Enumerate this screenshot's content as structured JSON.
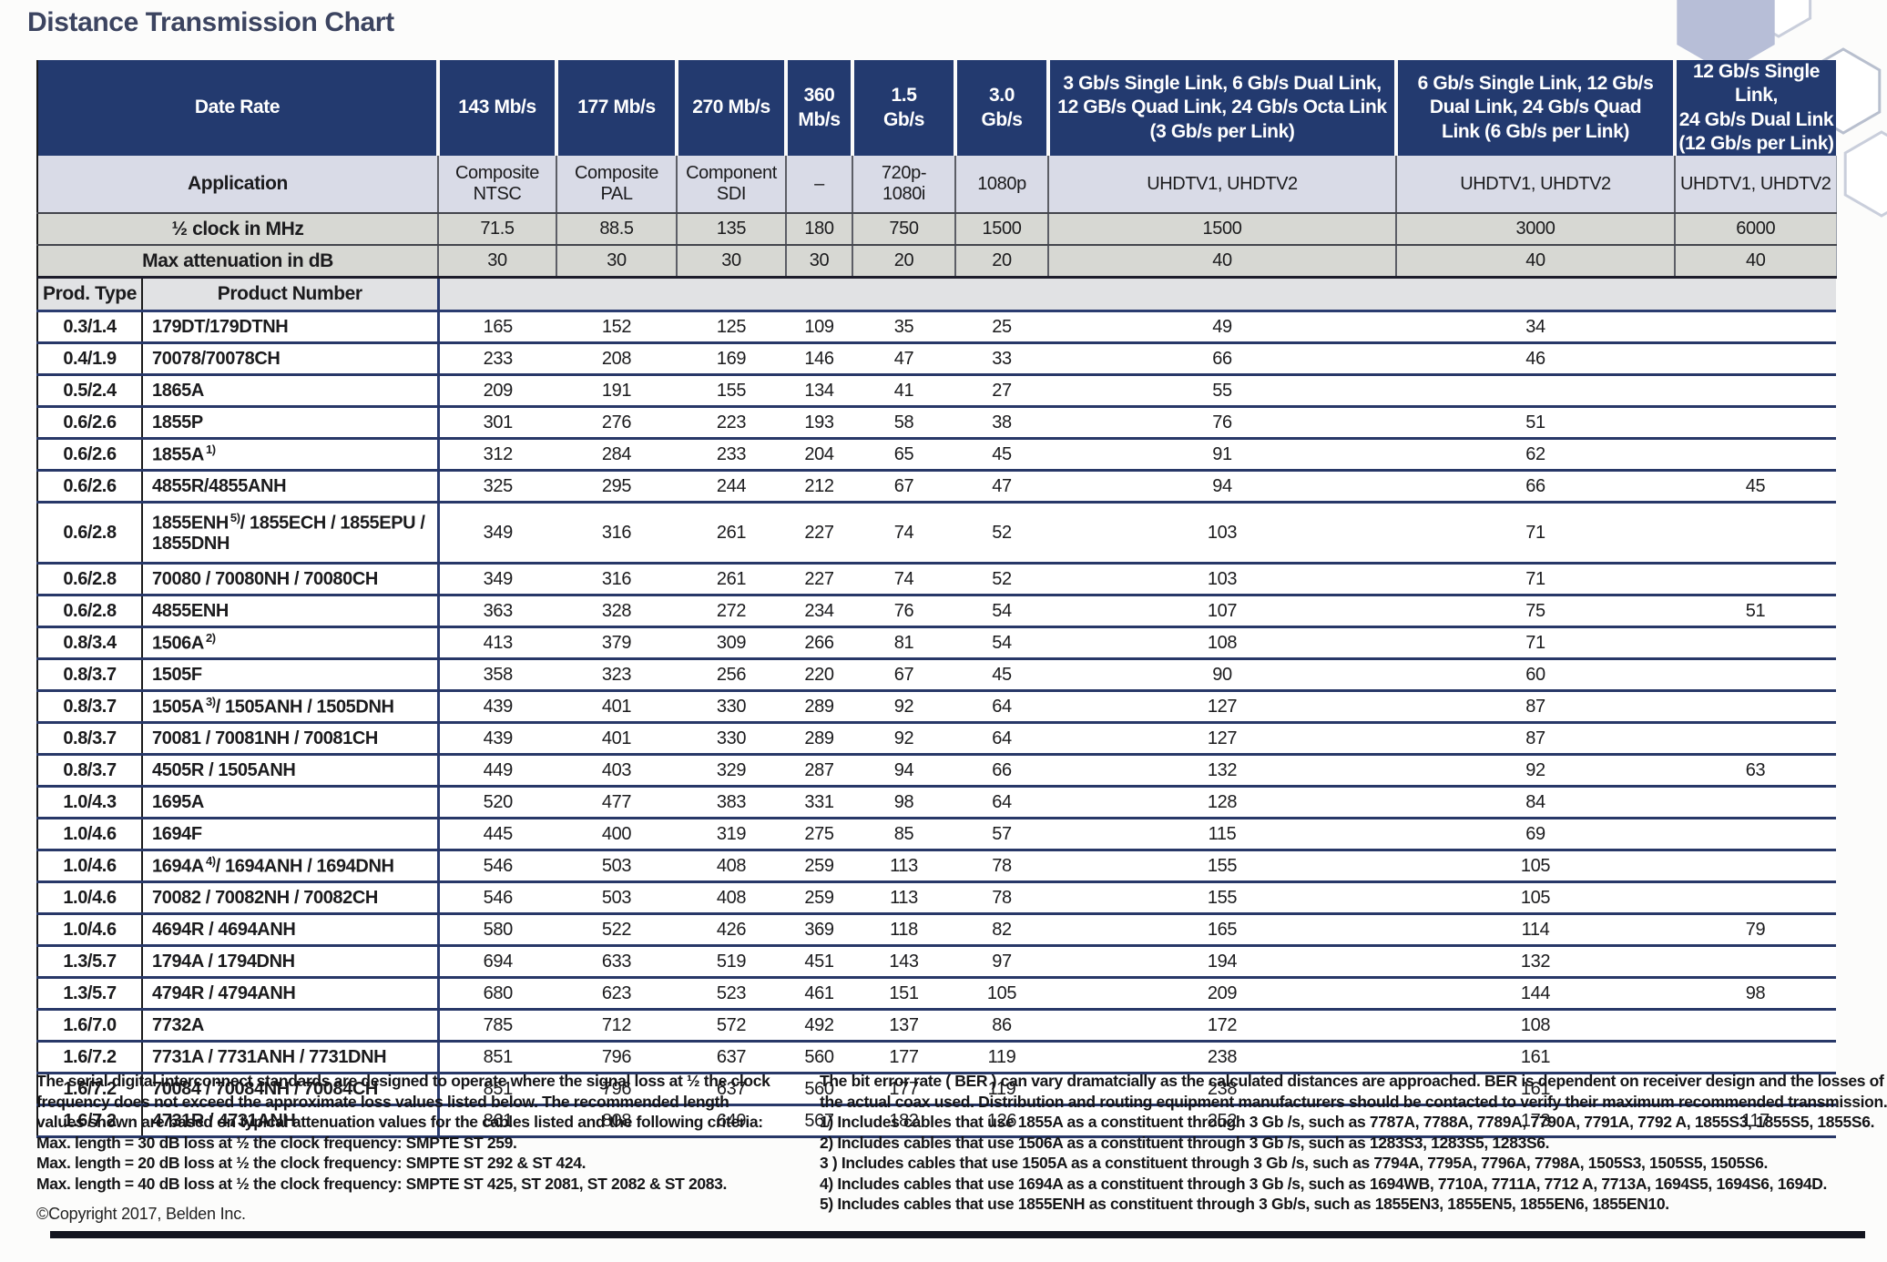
{
  "title": "Distance Transmission Chart",
  "table": {
    "header": {
      "date_rate_label": "Date Rate",
      "application_label": "Application",
      "clock_label": "½ clock in MHz",
      "attenuation_label": "Max attenuation in dB",
      "prod_type_label": "Prod. Type",
      "product_number_label": "Product Number",
      "columns": [
        {
          "rate": "143 Mb/s",
          "application": "Composite\nNTSC",
          "clock": "71.5",
          "attenuation": "30"
        },
        {
          "rate": "177 Mb/s",
          "application": "Composite\nPAL",
          "clock": "88.5",
          "attenuation": "30"
        },
        {
          "rate": "270 Mb/s",
          "application": "Component\nSDI",
          "clock": "135",
          "attenuation": "30"
        },
        {
          "rate": "360\nMb/s",
          "application": "–",
          "clock": "180",
          "attenuation": "30"
        },
        {
          "rate": "1.5\nGb/s",
          "application": "720p-\n1080i",
          "clock": "750",
          "attenuation": "20"
        },
        {
          "rate": "3.0\nGb/s",
          "application": "1080p",
          "clock": "1500",
          "attenuation": "20"
        },
        {
          "rate": "3 Gb/s Single Link, 6 Gb/s Dual Link,\n12 GB/s Quad Link, 24 Gb/s Octa Link\n(3 Gb/s per Link)",
          "application": "UHDTV1, UHDTV2",
          "clock": "1500",
          "attenuation": "40"
        },
        {
          "rate": "6 Gb/s Single Link, 12 Gb/s\nDual Link, 24 Gb/s Quad\nLink (6 Gb/s per Link)",
          "application": "UHDTV1, UHDTV2",
          "clock": "3000",
          "attenuation": "40"
        },
        {
          "rate": "12 Gb/s Single Link,\n24 Gb/s Dual Link\n(12 Gb/s per Link)",
          "application": "UHDTV1, UHDTV2",
          "clock": "6000",
          "attenuation": "40"
        }
      ]
    },
    "rows": [
      {
        "type": "0.3/1.4",
        "product": "179DT/179DTNH",
        "sup": "",
        "suffix": "",
        "tall": false,
        "values": [
          "165",
          "152",
          "125",
          "109",
          "35",
          "25",
          "49",
          "34",
          ""
        ]
      },
      {
        "type": "0.4/1.9",
        "product": "70078/70078CH",
        "sup": "",
        "suffix": "",
        "tall": false,
        "values": [
          "233",
          "208",
          "169",
          "146",
          "47",
          "33",
          "66",
          "46",
          ""
        ]
      },
      {
        "type": "0.5/2.4",
        "product": "1865A",
        "sup": "",
        "suffix": "",
        "tall": false,
        "values": [
          "209",
          "191",
          "155",
          "134",
          "41",
          "27",
          "55",
          "",
          ""
        ]
      },
      {
        "type": "0.6/2.6",
        "product": "1855P",
        "sup": "",
        "suffix": "",
        "tall": false,
        "values": [
          "301",
          "276",
          "223",
          "193",
          "58",
          "38",
          "76",
          "51",
          ""
        ]
      },
      {
        "type": "0.6/2.6",
        "product": "1855A",
        "sup": "1)",
        "suffix": "",
        "tall": false,
        "values": [
          "312",
          "284",
          "233",
          "204",
          "65",
          "45",
          "91",
          "62",
          ""
        ]
      },
      {
        "type": "0.6/2.6",
        "product": "4855R/4855ANH",
        "sup": "",
        "suffix": "",
        "tall": false,
        "values": [
          "325",
          "295",
          "244",
          "212",
          "67",
          "47",
          "94",
          "66",
          "45"
        ]
      },
      {
        "type": "0.6/2.8",
        "product": "1855ENH",
        "sup": "5)",
        "suffix": "/ 1855ECH / 1855EPU / 1855DNH",
        "tall": true,
        "values": [
          "349",
          "316",
          "261",
          "227",
          "74",
          "52",
          "103",
          "71",
          ""
        ]
      },
      {
        "type": "0.6/2.8",
        "product": "70080 / 70080NH / 70080CH",
        "sup": "",
        "suffix": "",
        "tall": false,
        "values": [
          "349",
          "316",
          "261",
          "227",
          "74",
          "52",
          "103",
          "71",
          ""
        ]
      },
      {
        "type": "0.6/2.8",
        "product": "4855ENH",
        "sup": "",
        "suffix": "",
        "tall": false,
        "values": [
          "363",
          "328",
          "272",
          "234",
          "76",
          "54",
          "107",
          "75",
          "51"
        ]
      },
      {
        "type": "0.8/3.4",
        "product": "1506A",
        "sup": "2)",
        "suffix": "",
        "tall": false,
        "values": [
          "413",
          "379",
          "309",
          "266",
          "81",
          "54",
          "108",
          "71",
          ""
        ]
      },
      {
        "type": "0.8/3.7",
        "product": "1505F",
        "sup": "",
        "suffix": "",
        "tall": false,
        "values": [
          "358",
          "323",
          "256",
          "220",
          "67",
          "45",
          "90",
          "60",
          ""
        ]
      },
      {
        "type": "0.8/3.7",
        "product": "1505A",
        "sup": "3)",
        "suffix": "/ 1505ANH / 1505DNH",
        "tall": false,
        "values": [
          "439",
          "401",
          "330",
          "289",
          "92",
          "64",
          "127",
          "87",
          ""
        ]
      },
      {
        "type": "0.8/3.7",
        "product": "70081 / 70081NH / 70081CH",
        "sup": "",
        "suffix": "",
        "tall": false,
        "values": [
          "439",
          "401",
          "330",
          "289",
          "92",
          "64",
          "127",
          "87",
          ""
        ]
      },
      {
        "type": "0.8/3.7",
        "product": "4505R / 1505ANH",
        "sup": "",
        "suffix": "",
        "tall": false,
        "values": [
          "449",
          "403",
          "329",
          "287",
          "94",
          "66",
          "132",
          "92",
          "63"
        ]
      },
      {
        "type": "1.0/4.3",
        "product": "1695A",
        "sup": "",
        "suffix": "",
        "tall": false,
        "values": [
          "520",
          "477",
          "383",
          "331",
          "98",
          "64",
          "128",
          "84",
          ""
        ]
      },
      {
        "type": "1.0/4.6",
        "product": "1694F",
        "sup": "",
        "suffix": "",
        "tall": false,
        "values": [
          "445",
          "400",
          "319",
          "275",
          "85",
          "57",
          "115",
          "69",
          ""
        ]
      },
      {
        "type": "1.0/4.6",
        "product": "1694A",
        "sup": "4)",
        "suffix": "/ 1694ANH / 1694DNH",
        "tall": false,
        "values": [
          "546",
          "503",
          "408",
          "259",
          "113",
          "78",
          "155",
          "105",
          ""
        ]
      },
      {
        "type": "1.0/4.6",
        "product": "70082 / 70082NH / 70082CH",
        "sup": "",
        "suffix": "",
        "tall": false,
        "values": [
          "546",
          "503",
          "408",
          "259",
          "113",
          "78",
          "155",
          "105",
          ""
        ]
      },
      {
        "type": "1.0/4.6",
        "product": "4694R / 4694ANH",
        "sup": "",
        "suffix": "",
        "tall": false,
        "values": [
          "580",
          "522",
          "426",
          "369",
          "118",
          "82",
          "165",
          "114",
          "79"
        ]
      },
      {
        "type": "1.3/5.7",
        "product": "1794A / 1794DNH",
        "sup": "",
        "suffix": "",
        "tall": false,
        "values": [
          "694",
          "633",
          "519",
          "451",
          "143",
          "97",
          "194",
          "132",
          ""
        ]
      },
      {
        "type": "1.3/5.7",
        "product": "4794R / 4794ANH",
        "sup": "",
        "suffix": "",
        "tall": false,
        "values": [
          "680",
          "623",
          "523",
          "461",
          "151",
          "105",
          "209",
          "144",
          "98"
        ]
      },
      {
        "type": "1.6/7.0",
        "product": "7732A",
        "sup": "",
        "suffix": "",
        "tall": false,
        "values": [
          "785",
          "712",
          "572",
          "492",
          "137",
          "86",
          "172",
          "108",
          ""
        ]
      },
      {
        "type": "1.6/7.2",
        "product": "7731A / 7731ANH / 7731DNH",
        "sup": "",
        "suffix": "",
        "tall": false,
        "values": [
          "851",
          "796",
          "637",
          "560",
          "177",
          "119",
          "238",
          "161",
          ""
        ]
      },
      {
        "type": "1.6/7.2",
        "product": "70084 / 70084NH / 70084CH",
        "sup": "",
        "suffix": "",
        "tall": false,
        "values": [
          "851",
          "796",
          "637",
          "560",
          "177",
          "119",
          "238",
          "161",
          ""
        ]
      },
      {
        "type": "1.6/7.2",
        "product": "4731R / 4731ANH",
        "sup": "",
        "suffix": "",
        "tall": false,
        "values": [
          "861",
          "808",
          "649",
          "567",
          "182",
          "126",
          "252",
          "173",
          "117"
        ]
      }
    ]
  },
  "footnotes_left": [
    "The serial digital interconnect standards are designed to operate where the signal loss at ½ the clock",
    "frequency does not exceed the approximate loss values listed below. The recommended length",
    "values shown are based on typical attenuation values for the cables listed and the following criteria:",
    "Max. length = 30 dB loss at ½ the clock frequency: SMPTE ST 259.",
    "Max. length = 20 dB loss at ½ the clock frequency: SMPTE ST 292 & ST 424.",
    "Max. length = 40 dB loss at ½ the clock frequency: SMPTE ST 425, ST 2081, ST 2082 & ST 2083."
  ],
  "copyright": "©Copyright 2017, Belden Inc.",
  "footnotes_right": [
    "The bit error rate ( BER ) can vary dramatcially as the calculated distances are approached. BER is dependent on receiver design and the losses of",
    "the actual coax used. Distribution and routing equipment manufacturers should be contacted to verify their maximum recommended transmission.",
    "1) Includes cables that use 1855A as a constituent through 3 Gb /s, such as 7787A, 7788A, 7789A, 7790A, 7791A, 7792 A, 1855S3, 1855S5, 1855S6.",
    "2) Includes cables that use 1506A as a constituent through 3 Gb /s, such as 1283S3, 1283S5, 1283S6.",
    "3 ) Includes cables that use 1505A as a constituent through 3 Gb /s, such as 7794A, 7795A, 7796A, 7798A, 1505S3, 1505S5, 1505S6.",
    "4) Includes cables that use 1694A as a constituent through 3 Gb /s, such as 1694WB, 7710A, 7711A, 7712 A, 7713A, 1694S5, 1694S6, 1694D.",
    "5) Includes cables that use 1855ENH as constituent through 3 Gb/s, such as 1855EN3, 1855EN5, 1855EN6, 1855EN10."
  ],
  "colors": {
    "header_navy": "#233a6f",
    "application_row": "#d9dbe7",
    "gray_row": "#d7d8d3",
    "prod_header_row": "#e1e2e4",
    "row_separator": "#283868",
    "bottom_bar": "#13151f",
    "hexagon_fill": "#b7bed7"
  }
}
